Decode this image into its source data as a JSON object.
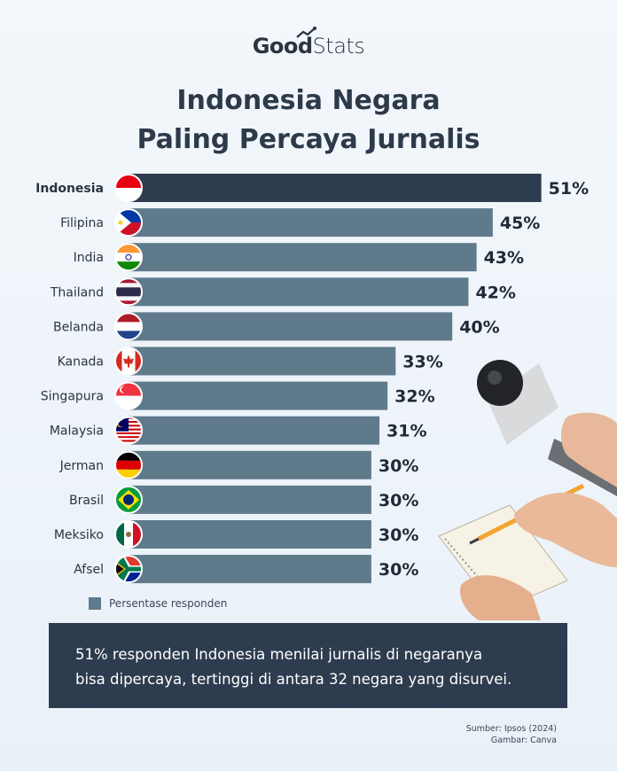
{
  "brand": {
    "good": "Good",
    "stats": "Stats"
  },
  "title_line1": "Indonesia Negara",
  "title_line2": "Paling Percaya Jurnalis",
  "chart_data": {
    "type": "bar",
    "orientation": "horizontal",
    "title": "Indonesia Negara Paling Percaya Jurnalis",
    "categories": [
      "Indonesia",
      "Filipina",
      "India",
      "Thailand",
      "Belanda",
      "Kanada",
      "Singapura",
      "Malaysia",
      "Jerman",
      "Brasil",
      "Meksiko",
      "Afsel"
    ],
    "values": [
      51,
      45,
      43,
      42,
      40,
      33,
      32,
      31,
      30,
      30,
      30,
      30
    ],
    "value_labels": [
      "51%",
      "45%",
      "43%",
      "42%",
      "40%",
      "33%",
      "32%",
      "31%",
      "30%",
      "30%",
      "30%",
      "30%"
    ],
    "highlight_index": 0,
    "series": [
      {
        "name": "Persentase responden",
        "values": [
          51,
          45,
          43,
          42,
          40,
          33,
          32,
          31,
          30,
          30,
          30,
          30
        ]
      }
    ],
    "colors": {
      "highlight": "#2e3c4f",
      "bar": "#5f7a8b"
    },
    "flags": [
      "indonesia-flag-icon",
      "philippines-flag-icon",
      "india-flag-icon",
      "thailand-flag-icon",
      "netherlands-flag-icon",
      "canada-flag-icon",
      "singapore-flag-icon",
      "malaysia-flag-icon",
      "germany-flag-icon",
      "brazil-flag-icon",
      "mexico-flag-icon",
      "south-africa-flag-icon"
    ],
    "legend": "bottom-left",
    "grid": false
  },
  "legend_label": "Persentase responden",
  "note_line1": "51% responden Indonesia menilai jurnalis di negaranya",
  "note_line2": "bisa dipercaya, tertinggi di antara 32 negara yang disurvei.",
  "source_line1": "Sumber: Ipsos (2024)",
  "source_line2": "Gambar: Canva"
}
